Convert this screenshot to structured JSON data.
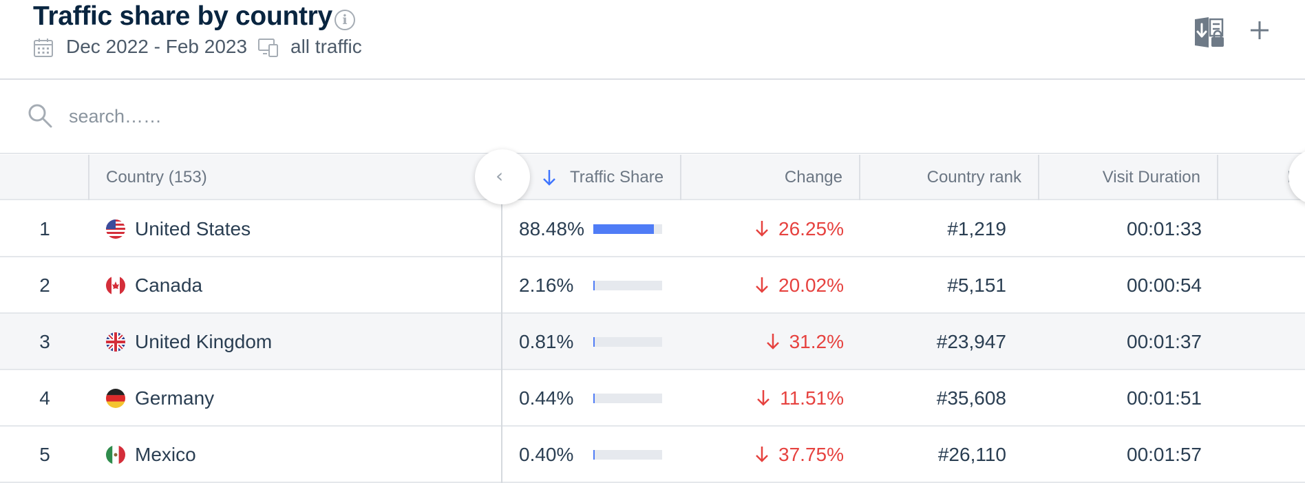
{
  "header": {
    "title": "Traffic share by country",
    "date_range": "Dec 2022 - Feb 2023",
    "traffic_type": "all traffic"
  },
  "search": {
    "placeholder": "search……"
  },
  "table": {
    "columns": {
      "country": "Country (153)",
      "traffic_share": "Traffic Share",
      "change": "Change",
      "country_rank": "Country rank",
      "visit_duration": "Visit Duration",
      "next_partial": "P"
    },
    "rows": [
      {
        "rank": "1",
        "country": "United States",
        "flag": "us-flag",
        "share": "88.48%",
        "share_value": 0.8848,
        "change": "26.25%",
        "country_rank": "#1,219",
        "duration": "00:01:33"
      },
      {
        "rank": "2",
        "country": "Canada",
        "flag": "canada-flag",
        "share": "2.16%",
        "share_value": 0.0216,
        "change": "20.02%",
        "country_rank": "#5,151",
        "duration": "00:00:54"
      },
      {
        "rank": "3",
        "country": "United Kingdom",
        "flag": "uk-flag",
        "share": "0.81%",
        "share_value": 0.0081,
        "change": "31.2%",
        "country_rank": "#23,947",
        "duration": "00:01:37"
      },
      {
        "rank": "4",
        "country": "Germany",
        "flag": "germany-flag",
        "share": "0.44%",
        "share_value": 0.0044,
        "change": "11.51%",
        "country_rank": "#35,608",
        "duration": "00:01:51"
      },
      {
        "rank": "5",
        "country": "Mexico",
        "flag": "mexico-flag",
        "share": "0.40%",
        "share_value": 0.004,
        "change": "37.75%",
        "country_rank": "#26,110",
        "duration": "00:01:57"
      }
    ]
  },
  "icons": {
    "info": "info-icon",
    "calendar": "calendar-icon",
    "devices": "devices-icon",
    "download": "download-excel-icon",
    "add": "plus-icon",
    "search": "search-icon",
    "sort": "sort-down-arrow-icon",
    "change_down": "arrow-down-icon",
    "collapse": "chevron-left-icon"
  },
  "colors": {
    "title": "#092540",
    "bar_fill": "#4f7cf6",
    "bar_track": "#e6e9ee",
    "negative_change": "#e6423f",
    "sort_arrow": "#3e74fe"
  }
}
